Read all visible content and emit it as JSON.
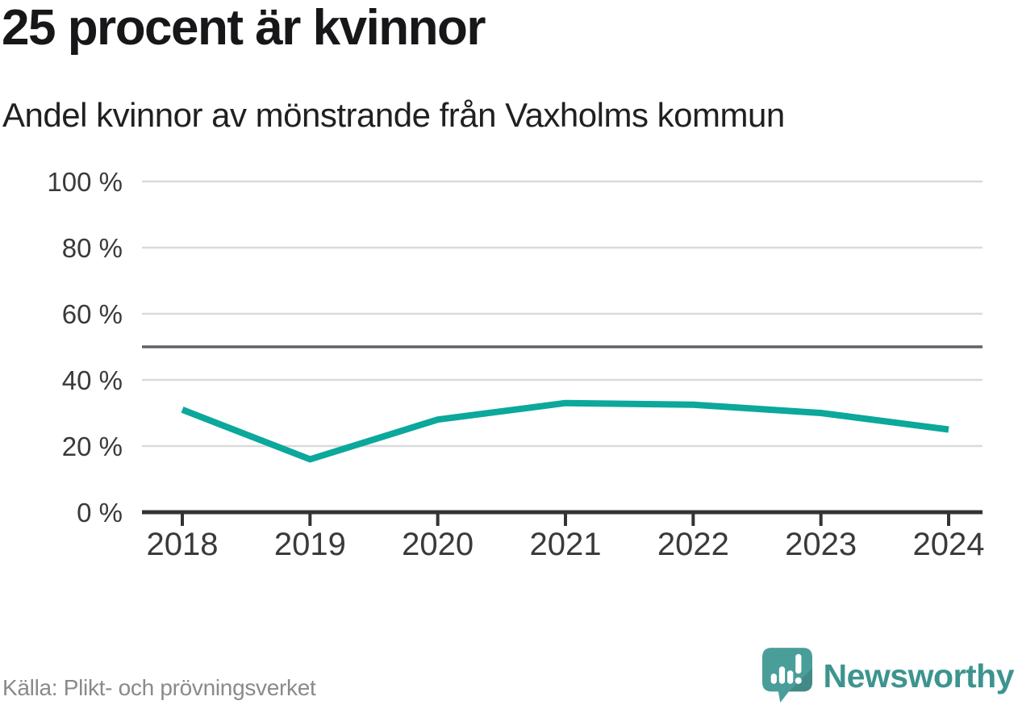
{
  "header": {
    "title": "25 procent är kvinnor",
    "subtitle": "Andel kvinnor av mönstrande från Vaxholms kommun"
  },
  "chart_data": {
    "type": "line",
    "title": "25 procent är kvinnor",
    "subtitle": "Andel kvinnor av mönstrande från Vaxholms kommun",
    "categories": [
      "2018",
      "2019",
      "2020",
      "2021",
      "2022",
      "2023",
      "2024"
    ],
    "series": [
      {
        "name": "Andel kvinnor av mönstrande",
        "values": [
          31,
          16,
          28,
          33,
          32.5,
          30,
          25
        ]
      }
    ],
    "unit": "%",
    "ylim": [
      0,
      100
    ],
    "yticks": [
      0,
      20,
      40,
      60,
      80,
      100
    ],
    "ytick_suffix": " %",
    "reference_line": {
      "value": 50
    },
    "grid": true,
    "legend": false
  },
  "colors": {
    "line": "#0ba89b",
    "grid": "#dadada",
    "reference": "#5f6368",
    "axis": "#333333",
    "tick_text": "#3a3a3a",
    "brand_teal": "#3d948f",
    "logo_teal": "#4a9e99"
  },
  "footer": {
    "source": "Källa: Plikt- och prövningsverket",
    "brand": "Newsworthy"
  },
  "icons": {
    "logo": "newsworthy-speech-bubble-barchart-icon"
  }
}
